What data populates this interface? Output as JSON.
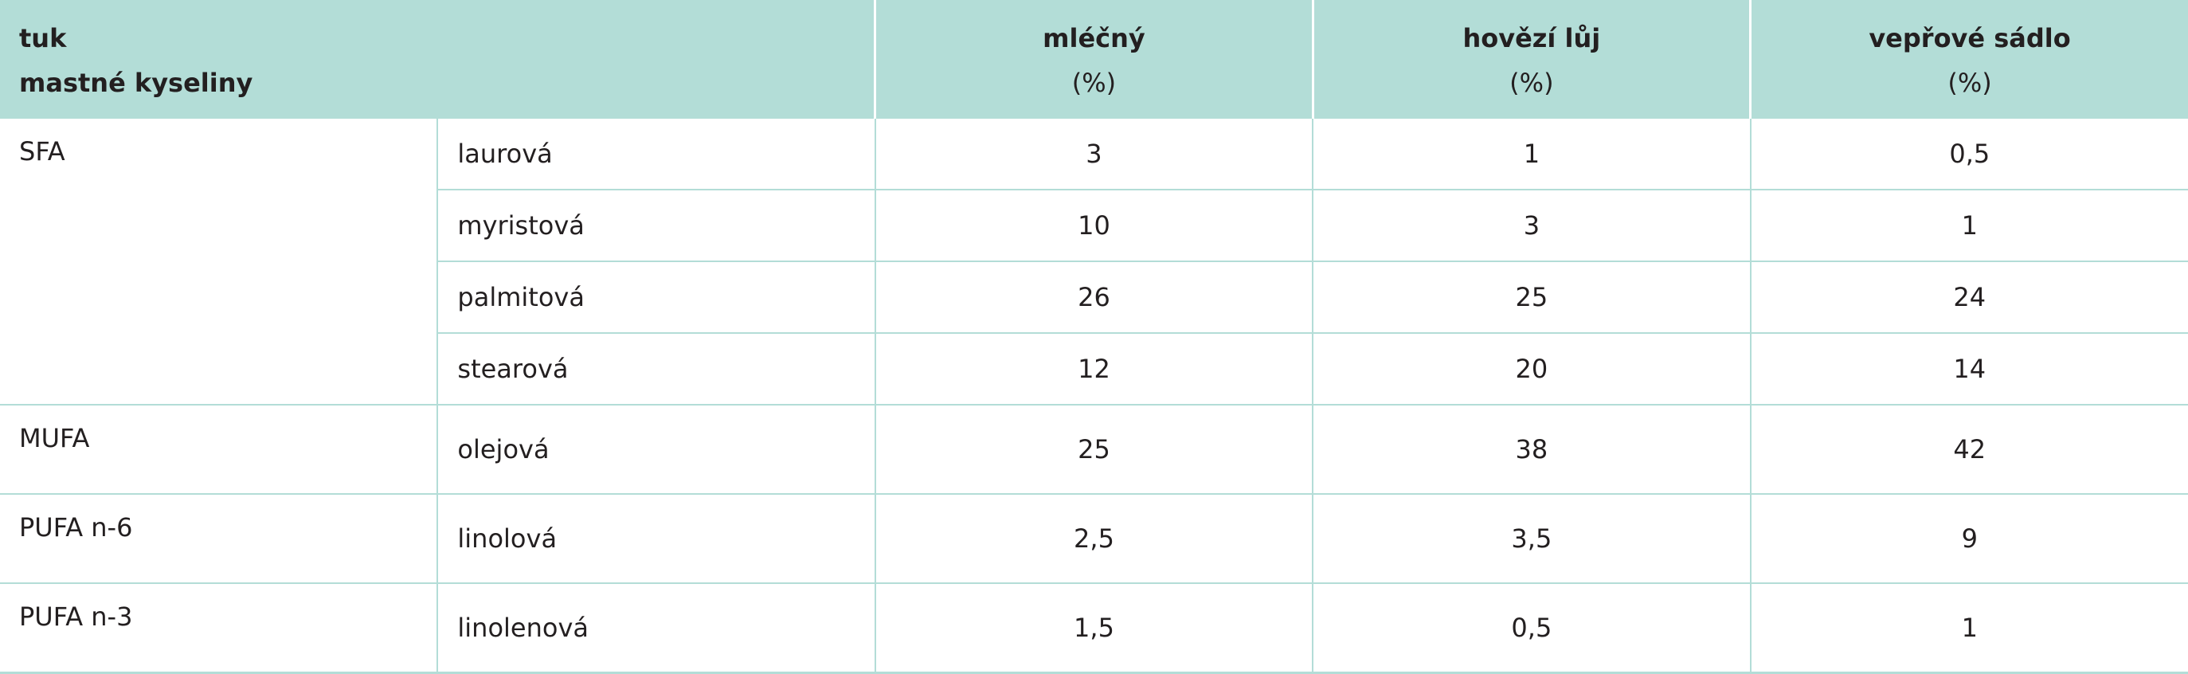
{
  "table": {
    "header": {
      "label_lines": [
        "tuk",
        "mastné kyseliny"
      ],
      "columns": [
        {
          "name": "mléčný",
          "unit": "(%)"
        },
        {
          "name": "hovězí lůj",
          "unit": "(%)"
        },
        {
          "name": "vepřové sádlo",
          "unit": "(%)"
        }
      ]
    },
    "groups": [
      {
        "name": "SFA",
        "rows": [
          {
            "acid": "laurová",
            "values": [
              "3",
              "1",
              "0,5"
            ]
          },
          {
            "acid": "myristová",
            "values": [
              "10",
              "3",
              "1"
            ]
          },
          {
            "acid": "palmitová",
            "values": [
              "26",
              "25",
              "24"
            ]
          },
          {
            "acid": "stearová",
            "values": [
              "12",
              "20",
              "14"
            ]
          }
        ]
      },
      {
        "name": "MUFA",
        "rows": [
          {
            "acid": "olejová",
            "values": [
              "25",
              "38",
              "42"
            ]
          }
        ]
      },
      {
        "name": "PUFA n-6",
        "rows": [
          {
            "acid": "linolová",
            "values": [
              "2,5",
              "3,5",
              "9"
            ]
          }
        ]
      },
      {
        "name": "PUFA n-3",
        "rows": [
          {
            "acid": "linolenová",
            "values": [
              "1,5",
              "0,5",
              "1"
            ]
          }
        ]
      }
    ]
  }
}
